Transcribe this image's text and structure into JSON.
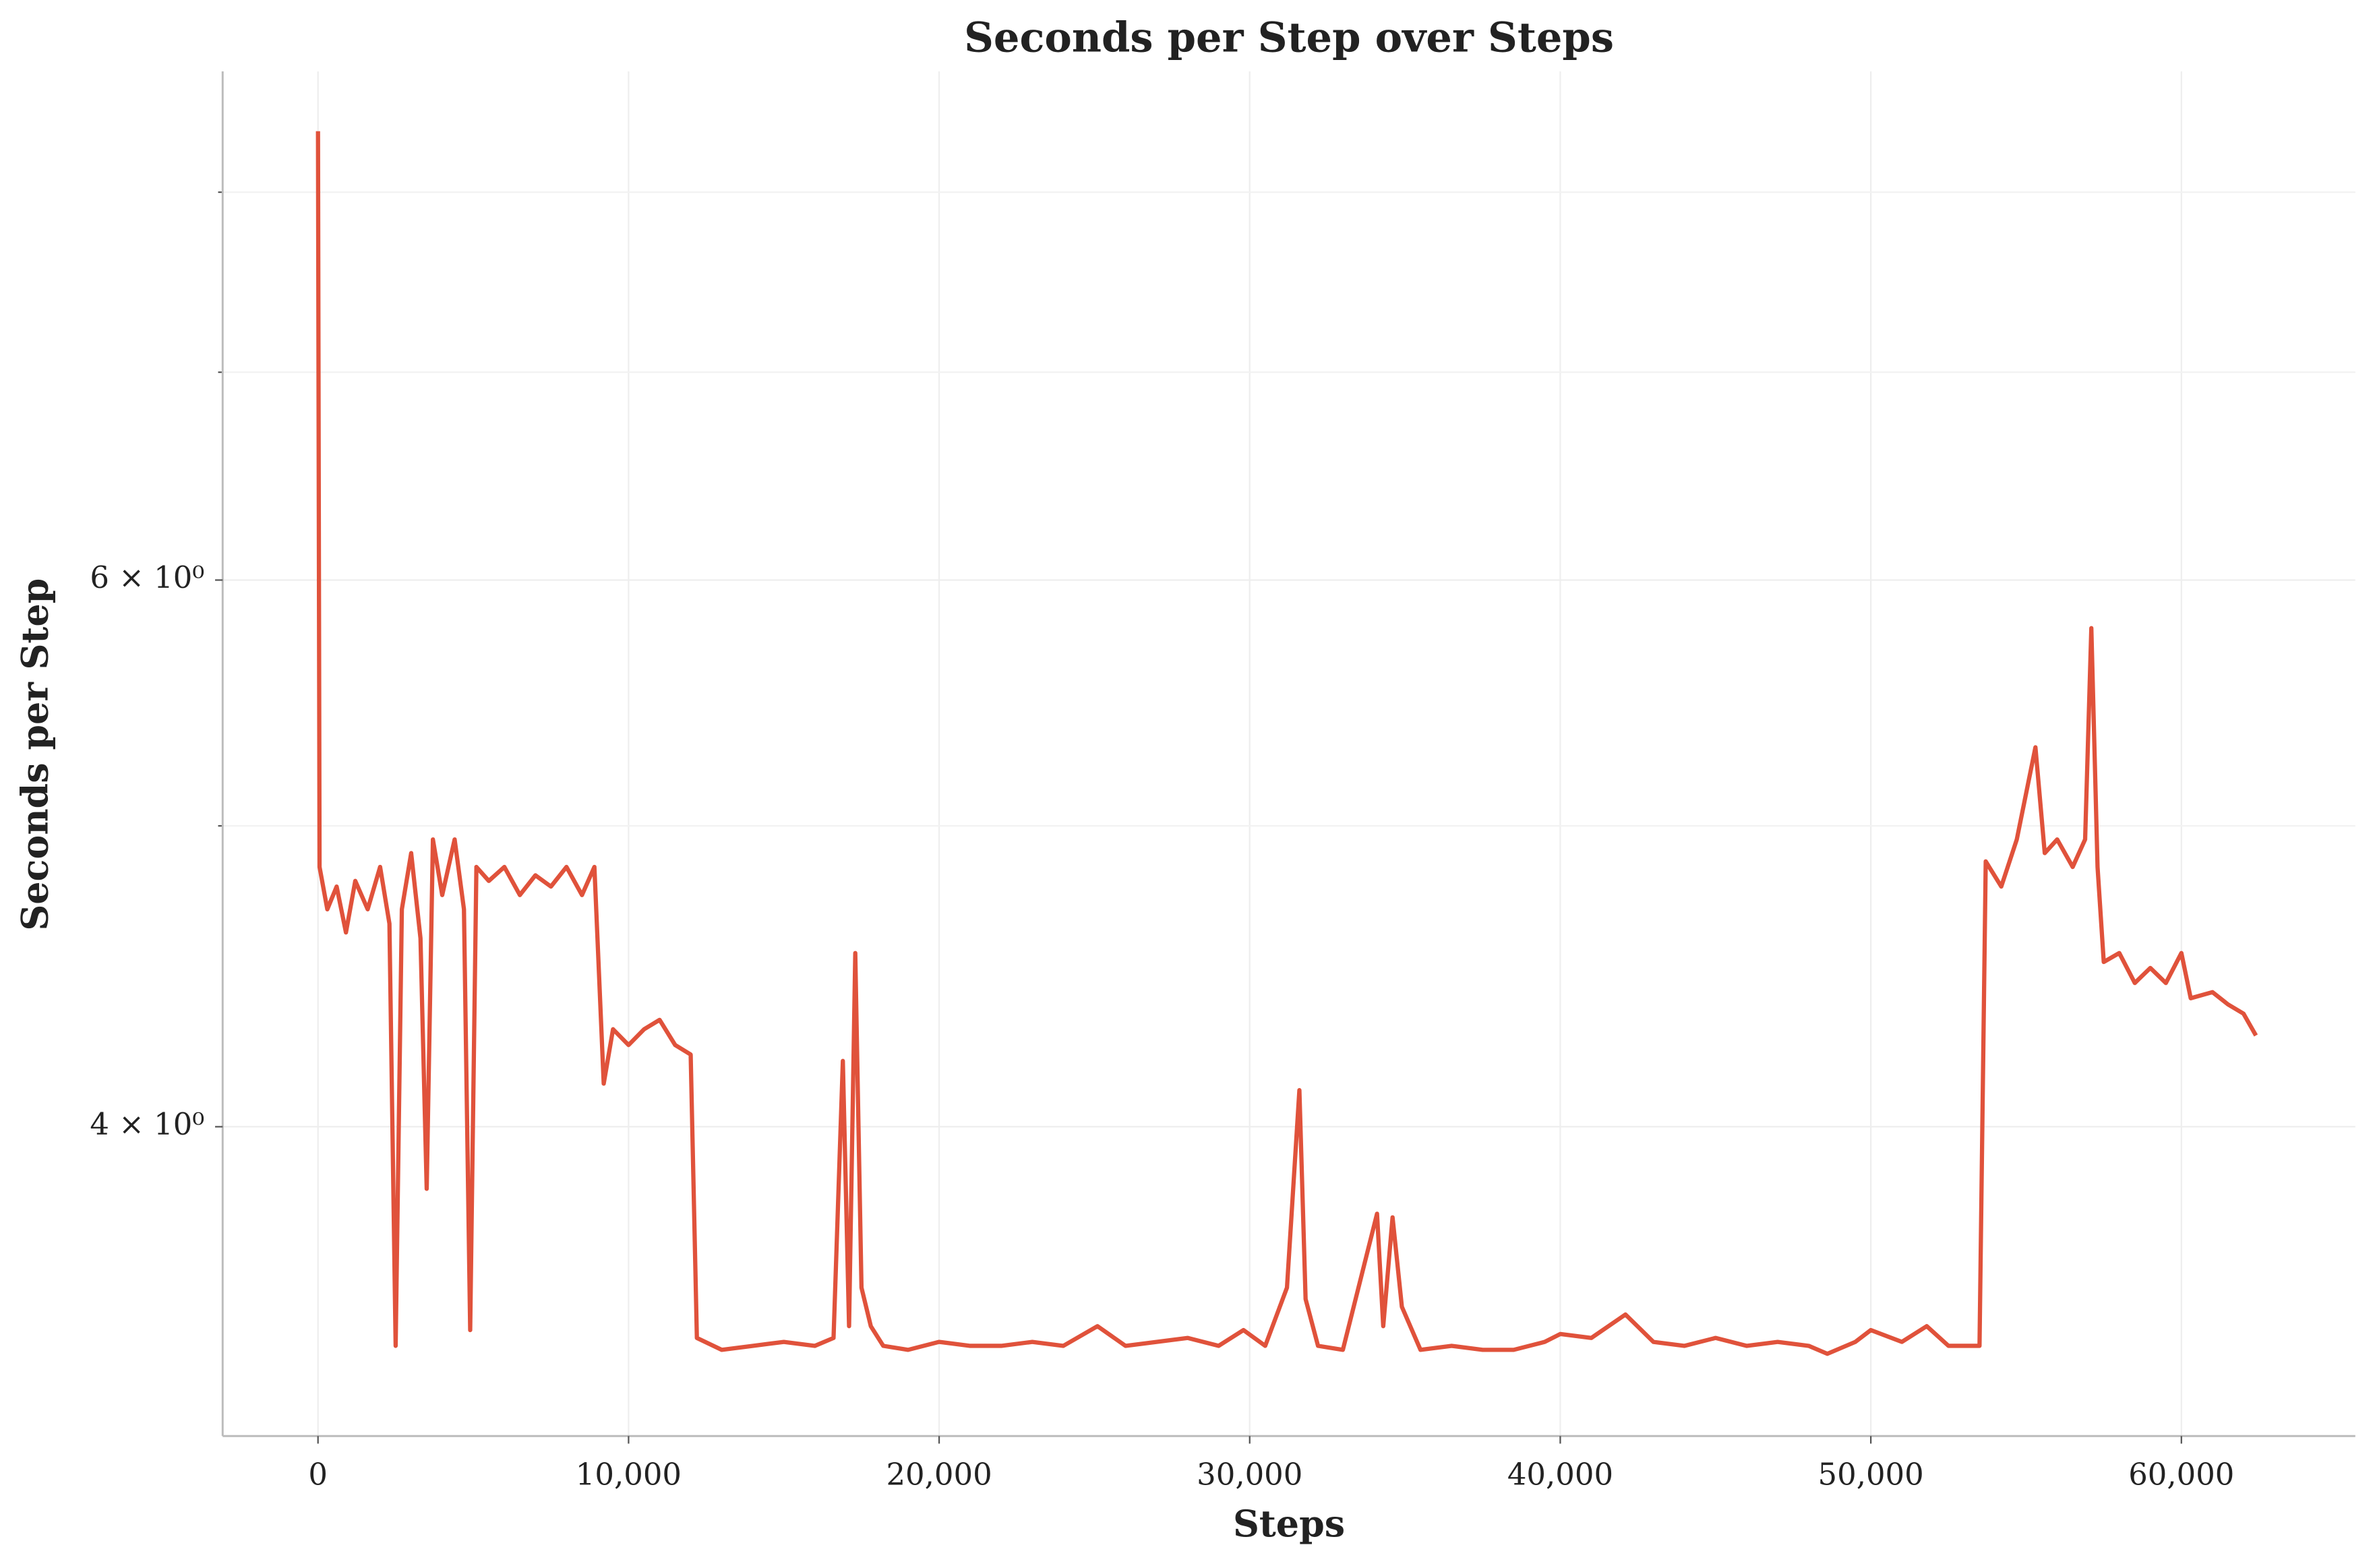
{
  "chart_data": {
    "type": "line",
    "title": "Seconds per Step over Steps",
    "x_label": "Steps",
    "y_label": "Seconds per Step",
    "log_y": true,
    "grid": true,
    "xlim": [
      -3070,
      65600
    ],
    "ylim": [
      3.18,
      8.75
    ],
    "xticks": [
      0,
      {
        "value": 10000,
        "label": "10,000"
      },
      {
        "value": 20000,
        "label": "20,000"
      },
      {
        "value": 30000,
        "label": "30,000"
      },
      {
        "value": 40000,
        "label": "40,000"
      },
      {
        "value": 50000,
        "label": "50,000"
      },
      {
        "value": 60000,
        "label": "60,000"
      }
    ],
    "yticks": [
      {
        "value": 4,
        "label": "4 × 10⁰"
      },
      {
        "value": 6,
        "label": "6 × 10⁰"
      }
    ],
    "yminor_ticks": [
      5,
      7,
      8
    ],
    "x": [
      0,
      50,
      300,
      600,
      900,
      1200,
      1600,
      2000,
      2300,
      2500,
      2700,
      3000,
      3300,
      3500,
      3700,
      4000,
      4400,
      4700,
      4900,
      5100,
      5500,
      6000,
      6500,
      7000,
      7500,
      8000,
      8500,
      8900,
      9200,
      9500,
      10000,
      10500,
      11000,
      11500,
      12000,
      12200,
      13000,
      14000,
      15000,
      16000,
      16600,
      16900,
      17100,
      17300,
      17500,
      17800,
      18200,
      19000,
      20000,
      21000,
      22000,
      23000,
      24000,
      25100,
      26000,
      27000,
      28000,
      29000,
      29800,
      30500,
      31200,
      31600,
      31800,
      32200,
      33000,
      34100,
      34300,
      34600,
      34900,
      35500,
      36500,
      37500,
      38500,
      39500,
      40000,
      41000,
      42100,
      43000,
      44000,
      45000,
      46000,
      47000,
      48000,
      48600,
      49500,
      50000,
      51000,
      51800,
      52500,
      53500,
      53700,
      54200,
      54700,
      55300,
      55600,
      56000,
      56500,
      56900,
      57100,
      57300,
      57500,
      58000,
      58500,
      59000,
      59500,
      60000,
      60300,
      61000,
      61500,
      62000,
      62400
    ],
    "series": [
      {
        "name": "Seconds per Step",
        "color": "#e0523b",
        "values": [
          8.37,
          4.85,
          4.7,
          4.78,
          4.62,
          4.8,
          4.7,
          4.85,
          4.65,
          3.4,
          4.7,
          4.9,
          4.6,
          3.82,
          4.95,
          4.75,
          4.95,
          4.7,
          3.44,
          4.85,
          4.8,
          4.85,
          4.75,
          4.82,
          4.78,
          4.85,
          4.75,
          4.85,
          4.13,
          4.3,
          4.25,
          4.3,
          4.33,
          4.25,
          4.22,
          3.42,
          3.39,
          3.4,
          3.41,
          3.4,
          3.42,
          4.2,
          3.45,
          4.55,
          3.55,
          3.45,
          3.4,
          3.39,
          3.41,
          3.4,
          3.4,
          3.41,
          3.4,
          3.45,
          3.4,
          3.41,
          3.42,
          3.4,
          3.44,
          3.4,
          3.55,
          4.11,
          3.52,
          3.4,
          3.39,
          3.75,
          3.45,
          3.74,
          3.5,
          3.39,
          3.4,
          3.39,
          3.39,
          3.41,
          3.43,
          3.42,
          3.48,
          3.41,
          3.4,
          3.42,
          3.4,
          3.41,
          3.4,
          3.38,
          3.41,
          3.44,
          3.41,
          3.45,
          3.4,
          3.4,
          4.87,
          4.78,
          4.95,
          5.3,
          4.9,
          4.95,
          4.85,
          4.95,
          5.79,
          4.85,
          4.52,
          4.55,
          4.45,
          4.5,
          4.45,
          4.55,
          4.4,
          4.42,
          4.38,
          4.35,
          4.28
        ]
      }
    ]
  }
}
